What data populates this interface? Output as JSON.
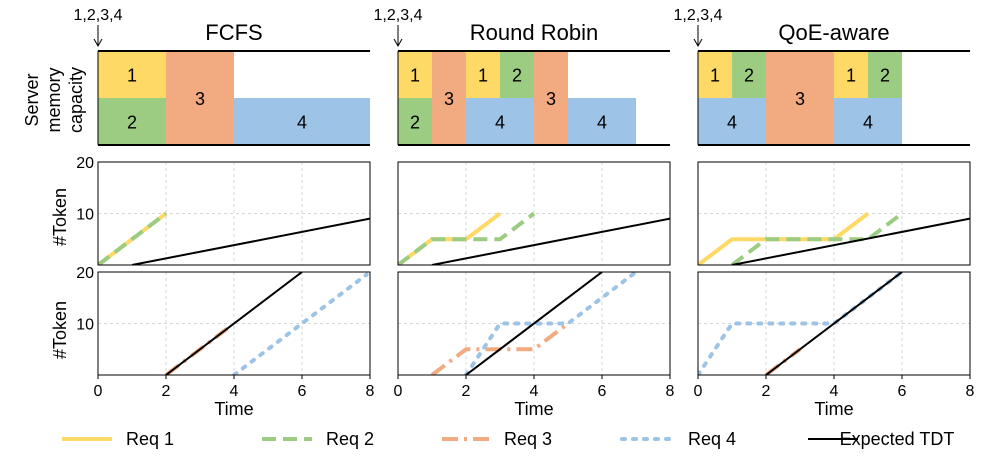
{
  "colors": {
    "req1": "#FFD966",
    "req2": "#9CCB82",
    "req3": "#F2AB80",
    "req4": "#9DC3E6",
    "tdt": "#000000",
    "grid": "#cccccc"
  },
  "chart_data": {
    "type": "line",
    "arrival_label": "1,2,3,4",
    "memory_ylabel_lines": [
      "Server",
      "memory",
      "capacity"
    ],
    "token_ylabel": "#Token",
    "xlabel": "Time",
    "xticks": [
      "0",
      "2",
      "4",
      "6",
      "8"
    ],
    "yticks": [
      "10",
      "20"
    ],
    "xlim": [
      0,
      8
    ],
    "ylim": [
      0,
      20
    ],
    "grid": true,
    "legend_position": "bottom",
    "legend": [
      {
        "key": "req1",
        "label": "Req 1",
        "style": "solid"
      },
      {
        "key": "req2",
        "label": "Req 2",
        "style": "dashed"
      },
      {
        "key": "req3",
        "label": "Req 3",
        "style": "dashdot"
      },
      {
        "key": "req4",
        "label": "Req 4",
        "style": "dotted"
      },
      {
        "key": "tdt",
        "label": "Expected TDT",
        "style": "solid-thin"
      }
    ],
    "panels": [
      {
        "title": "FCFS",
        "memory_blocks": [
          {
            "label": "1",
            "color": "req1",
            "x0": 0,
            "x1": 2,
            "half": "top"
          },
          {
            "label": "2",
            "color": "req2",
            "x0": 0,
            "x1": 2,
            "half": "bottom"
          },
          {
            "label": "3",
            "color": "req3",
            "x0": 2,
            "x1": 4,
            "half": "full"
          },
          {
            "label": "4",
            "color": "req4",
            "x0": 4,
            "x1": 8,
            "half": "bottom"
          }
        ],
        "group1_series": [
          {
            "name": "Req 1",
            "key": "req1",
            "style": "solid",
            "points": [
              [
                0,
                0
              ],
              [
                2,
                10
              ]
            ]
          },
          {
            "name": "Req 2",
            "key": "req2",
            "style": "dashed",
            "points": [
              [
                0,
                0
              ],
              [
                2,
                10
              ]
            ]
          }
        ],
        "group1_tdt": [
          [
            1,
            0
          ],
          [
            8,
            9
          ]
        ],
        "group2_series": [
          {
            "name": "Req 3",
            "key": "req3",
            "style": "dashdot",
            "points": [
              [
                2,
                0
              ],
              [
                3.8,
                9
              ]
            ]
          },
          {
            "name": "Req 4",
            "key": "req4",
            "style": "dotted",
            "points": [
              [
                4,
                0
              ],
              [
                7.9,
                19.5
              ]
            ]
          }
        ],
        "group2_tdt": [
          [
            2,
            0
          ],
          [
            6,
            20
          ]
        ]
      },
      {
        "title": "Round Robin",
        "memory_blocks": [
          {
            "label": "1",
            "color": "req1",
            "x0": 0,
            "x1": 1,
            "half": "top"
          },
          {
            "label": "2",
            "color": "req2",
            "x0": 0,
            "x1": 1,
            "half": "bottom"
          },
          {
            "label": "3",
            "color": "req3",
            "x0": 1,
            "x1": 2,
            "half": "full"
          },
          {
            "label": "1",
            "color": "req1",
            "x0": 2,
            "x1": 3,
            "half": "top"
          },
          {
            "label": "2",
            "color": "req2",
            "x0": 3,
            "x1": 4,
            "half": "top"
          },
          {
            "label": "4",
            "color": "req4",
            "x0": 2,
            "x1": 4,
            "half": "bottom"
          },
          {
            "label": "3",
            "color": "req3",
            "x0": 4,
            "x1": 5,
            "half": "full"
          },
          {
            "label": "4",
            "color": "req4",
            "x0": 5,
            "x1": 7,
            "half": "bottom"
          }
        ],
        "group1_series": [
          {
            "name": "Req 1",
            "key": "req1",
            "style": "solid",
            "points": [
              [
                0,
                0
              ],
              [
                1,
                5
              ],
              [
                2,
                5
              ],
              [
                3,
                10
              ]
            ]
          },
          {
            "name": "Req 2",
            "key": "req2",
            "style": "dashed",
            "points": [
              [
                0,
                0
              ],
              [
                1,
                5
              ],
              [
                3,
                5
              ],
              [
                4,
                10
              ]
            ]
          }
        ],
        "group1_tdt": [
          [
            1,
            0
          ],
          [
            8,
            9
          ]
        ],
        "group2_series": [
          {
            "name": "Req 3",
            "key": "req3",
            "style": "dashdot",
            "points": [
              [
                1,
                0
              ],
              [
                2,
                5
              ],
              [
                4,
                5
              ],
              [
                5,
                10
              ]
            ]
          },
          {
            "name": "Req 4",
            "key": "req4",
            "style": "dotted",
            "points": [
              [
                2,
                0
              ],
              [
                3,
                10
              ],
              [
                5,
                10
              ],
              [
                7,
                20
              ]
            ]
          }
        ],
        "group2_tdt": [
          [
            2,
            0
          ],
          [
            6,
            20
          ]
        ]
      },
      {
        "title": "QoE-aware",
        "memory_blocks": [
          {
            "label": "1",
            "color": "req1",
            "x0": 0,
            "x1": 1,
            "half": "top"
          },
          {
            "label": "2",
            "color": "req2",
            "x0": 1,
            "x1": 2,
            "half": "top"
          },
          {
            "label": "4",
            "color": "req4",
            "x0": 0,
            "x1": 2,
            "half": "bottom"
          },
          {
            "label": "3",
            "color": "req3",
            "x0": 2,
            "x1": 4,
            "half": "full"
          },
          {
            "label": "1",
            "color": "req1",
            "x0": 4,
            "x1": 5,
            "half": "top"
          },
          {
            "label": "2",
            "color": "req2",
            "x0": 5,
            "x1": 6,
            "half": "top"
          },
          {
            "label": "4",
            "color": "req4",
            "x0": 4,
            "x1": 6,
            "half": "bottom"
          }
        ],
        "group1_series": [
          {
            "name": "Req 1",
            "key": "req1",
            "style": "solid",
            "points": [
              [
                0,
                0
              ],
              [
                1,
                5
              ],
              [
                4,
                5
              ],
              [
                5,
                10
              ]
            ]
          },
          {
            "name": "Req 2",
            "key": "req2",
            "style": "dashed",
            "points": [
              [
                1,
                0
              ],
              [
                2,
                5
              ],
              [
                5,
                5
              ],
              [
                6,
                10
              ]
            ]
          }
        ],
        "group1_tdt": [
          [
            1,
            0
          ],
          [
            8,
            9
          ]
        ],
        "group2_series": [
          {
            "name": "Req 3",
            "key": "req3",
            "style": "dashdot",
            "points": [
              [
                2,
                0
              ],
              [
                3,
                5
              ]
            ]
          },
          {
            "name": "Req 4",
            "key": "req4",
            "style": "dotted",
            "points": [
              [
                0,
                0
              ],
              [
                1,
                10
              ],
              [
                4,
                10
              ],
              [
                6,
                20
              ]
            ]
          }
        ],
        "group2_tdt": [
          [
            2,
            0
          ],
          [
            6,
            20
          ]
        ]
      }
    ]
  }
}
